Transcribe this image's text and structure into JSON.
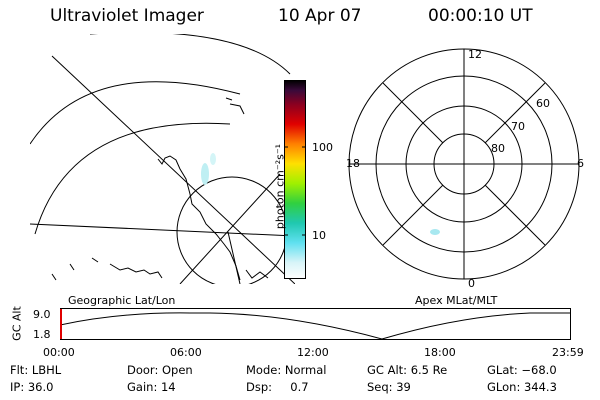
{
  "header": {
    "title": "Ultraviolet Imager",
    "date": "10 Apr 07",
    "time": "00:00:10 UT"
  },
  "colorbar": {
    "label": "photon cm⁻²s⁻¹",
    "tick_100": "100",
    "tick_10": "10"
  },
  "geo_map": {
    "label": "Geographic Lat/Lon",
    "coastline_color": "#000000",
    "aurora_color": "#bfeff3"
  },
  "polar_plot": {
    "label": "Apex MLat/MLT",
    "mlt_top": "12",
    "mlt_left": "18",
    "mlt_right": "6",
    "mlt_bottom": "0",
    "lat_60": "60",
    "lat_70": "70",
    "lat_80": "80"
  },
  "altitude_plot": {
    "ylabel": "GC Alt",
    "ymax": "9.0",
    "ymin": "1.8",
    "x_ticks": [
      "00:00",
      "06:00",
      "12:00",
      "18:00",
      "23:59"
    ],
    "marker_color": "#e00000"
  },
  "info": {
    "flt": "Flt: LBHL",
    "ip": "IP: 36.0",
    "door": "Door: Open",
    "gain": "Gain: 14",
    "mode": "Mode: Normal",
    "dsp": "Dsp:     0.7",
    "gc_alt": "GC Alt: 6.5 Re",
    "seq": "Seq: 39",
    "glat": "GLat: −68.0",
    "glon": "GLon: 344.3"
  }
}
